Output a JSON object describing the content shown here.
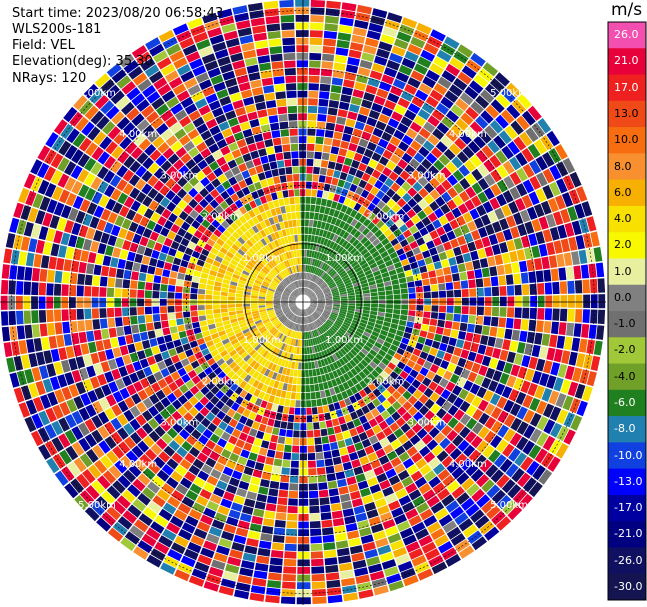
{
  "header": {
    "start_time": "Start time: 2023/08/20 06:58:43",
    "instrument": "WLS200s-181",
    "field": "Field: VEL",
    "elevation": "Elevation(deg): 35.30",
    "nrays": "NRays: 120"
  },
  "chart_data": {
    "type": "heatmap",
    "projection": "polar-ppi",
    "field": "VEL",
    "nrays": 120,
    "elevation_deg": 35.3,
    "range_rings_km": [
      1.0,
      2.0,
      3.0,
      4.0,
      5.0
    ],
    "ring_labels": [
      "1.00km",
      "2.00km",
      "3.00km",
      "4.00km",
      "5.00km"
    ],
    "colorbar": {
      "unit": "m/s",
      "ticks": [
        "26.0",
        "21.0",
        "17.0",
        "13.0",
        "10.0",
        "8.0",
        "6.0",
        "4.0",
        "2.0",
        "1.0",
        "0.0",
        "-1.0",
        "-2.0",
        "-4.0",
        "-6.0",
        "-8.0",
        "-10.0",
        "-13.0",
        "-17.0",
        "-21.0",
        "-26.0",
        "-30.0"
      ],
      "colors": [
        "#f24fb0",
        "#e8003a",
        "#ef2020",
        "#f04a18",
        "#f86d10",
        "#f89030",
        "#f8b000",
        "#f8e000",
        "#f8f800",
        "#e8f0a0",
        "#808080",
        "#707070",
        "#a0c838",
        "#70a028",
        "#208020",
        "#2080b0",
        "#1040e0",
        "#0000ff",
        "#0000a0",
        "#000080",
        "#101060",
        "#141450"
      ]
    },
    "data_pattern": {
      "inner_core_km": 1.8,
      "west_velocity_ms": 4.0,
      "east_velocity_ms": -6.0,
      "outer_noise": "random"
    }
  }
}
